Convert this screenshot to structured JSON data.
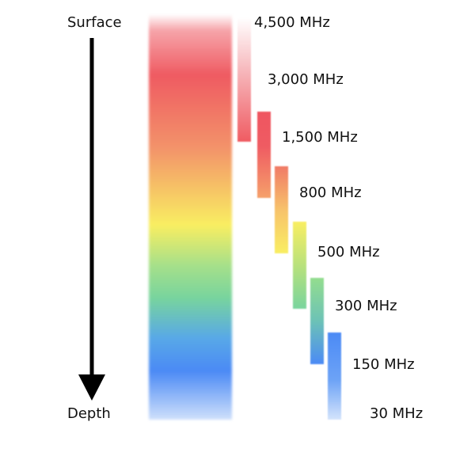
{
  "labels": {
    "surface": "Surface",
    "depth": "Depth"
  },
  "frequencies": [
    "4,500 MHz",
    "3,000 MHz",
    "1,500 MHz",
    "800 MHz",
    "500 MHz",
    "300 MHz",
    "150 MHz",
    "30 MHz"
  ],
  "colors": {
    "red": "#ef5b62",
    "orange": "#f3936a",
    "yellow": "#f9ee62",
    "green": "#78d49e",
    "blue": "#4b8af5",
    "arrow": "#000000"
  }
}
